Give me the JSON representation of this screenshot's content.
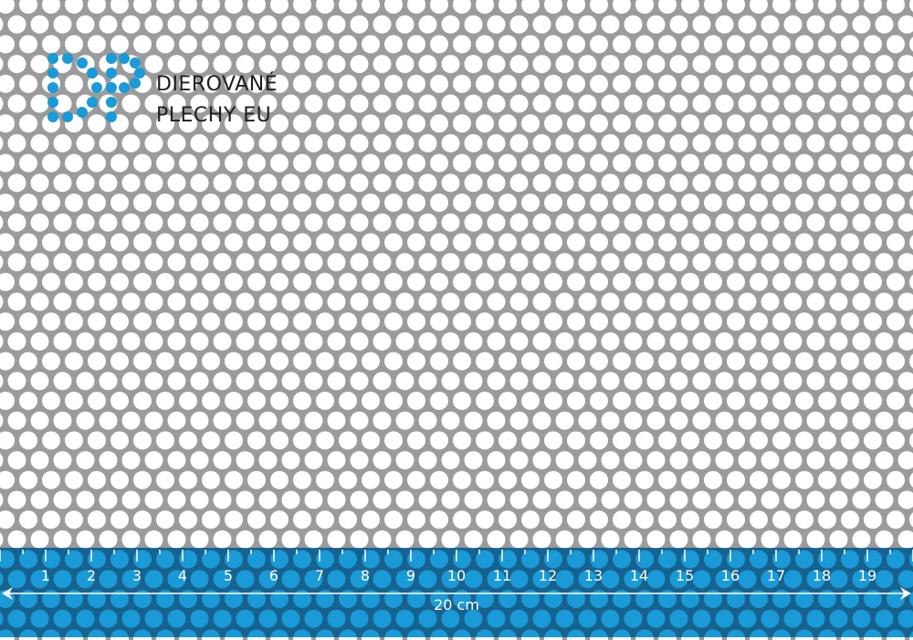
{
  "logo": {
    "monogram": "DP",
    "line1": "DIEROVANÉ",
    "line2": "PLECHY EU",
    "color": "#1a9ad6"
  },
  "colors": {
    "sheet": "#9b9b9b",
    "hole": "#ffffff",
    "ruler_band": "#17628f",
    "ruler_hole": "#1a9ad6",
    "ruler_text": "#ffffff"
  },
  "ruler": {
    "labels": [
      "1",
      "2",
      "3",
      "4",
      "5",
      "6",
      "7",
      "8",
      "9",
      "10",
      "11",
      "12",
      "13",
      "14",
      "15",
      "16",
      "17",
      "18",
      "19"
    ],
    "total_label": "20 cm"
  }
}
